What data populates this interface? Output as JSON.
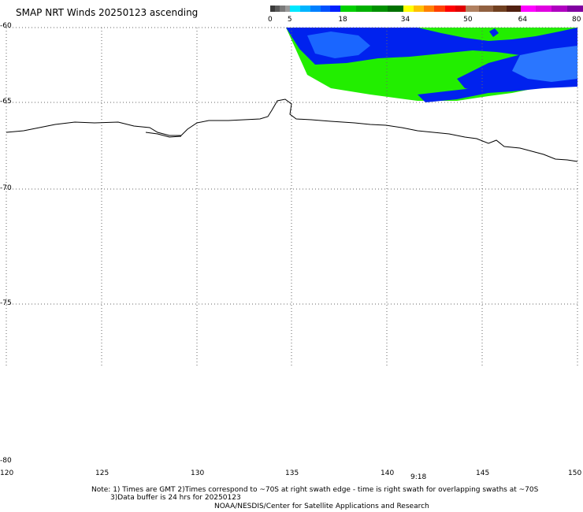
{
  "header": {
    "title": "SMAP NRT Winds 20250123 ascending"
  },
  "colorbar": {
    "labels": [
      "0",
      "5",
      "18",
      "34",
      "50",
      "64",
      "80"
    ],
    "segments": [
      {
        "from": 0,
        "to": 5,
        "colors": [
          "#3a3a3a",
          "#5a5a5a",
          "#7a7a7a",
          "#9a9a9a"
        ]
      },
      {
        "from": 5,
        "to": 18,
        "colors": [
          "#00e8ff",
          "#00b4ff",
          "#0080ff",
          "#0050ff",
          "#0020ff"
        ]
      },
      {
        "from": 18,
        "to": 34,
        "colors": [
          "#00d000",
          "#00b000",
          "#009000",
          "#007000"
        ]
      },
      {
        "from": 34,
        "to": 50,
        "colors": [
          "#ffff00",
          "#ffc000",
          "#ff8000",
          "#ff4000",
          "#ff0000",
          "#e00000"
        ]
      },
      {
        "from": 50,
        "to": 64,
        "colors": [
          "#b08060",
          "#906040",
          "#704020",
          "#502010"
        ]
      },
      {
        "from": 64,
        "to": 80,
        "colors": [
          "#ff00ff",
          "#e000e0",
          "#b000c0",
          "#8000a0"
        ]
      }
    ]
  },
  "map": {
    "lat_labels": [
      "-60",
      "-65",
      "-70",
      "-75",
      "-80"
    ],
    "lon_labels": [
      "120",
      "125",
      "130",
      "135",
      "140",
      "145",
      "150"
    ],
    "time_label": "9:18",
    "wind_colors": {
      "dark_blue": "#0022ee",
      "light_blue": "#1a66ff",
      "green": "#22ee00",
      "coast": "#000000"
    }
  },
  "footer": {
    "note1": "Note: 1) Times are GMT 2)Times correspond to ~70S at right swath edge - time is right swath for overlapping swaths at ~70S",
    "note2": "3)Data buffer is 24 hrs for 20250123",
    "credit": "NOAA/NESDIS/Center for Satellite Applications and Research"
  }
}
